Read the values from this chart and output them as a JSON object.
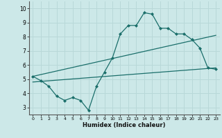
{
  "title": "",
  "xlabel": "Humidex (Indice chaleur)",
  "ylabel": "",
  "bg_color": "#cce8e8",
  "line_color": "#1a6e6a",
  "grid_color": "#b8d8d8",
  "xlim": [
    -0.5,
    23.5
  ],
  "ylim": [
    2.5,
    10.5
  ],
  "xticks": [
    0,
    1,
    2,
    3,
    4,
    5,
    6,
    7,
    8,
    9,
    10,
    11,
    12,
    13,
    14,
    15,
    16,
    17,
    18,
    19,
    20,
    21,
    22,
    23
  ],
  "yticks": [
    3,
    4,
    5,
    6,
    7,
    8,
    9,
    10
  ],
  "line1_x": [
    0,
    1,
    2,
    3,
    4,
    5,
    6,
    7,
    8,
    9,
    10,
    11,
    12,
    13,
    14,
    15,
    16,
    17,
    18,
    19,
    20,
    21,
    22,
    23
  ],
  "line1_y": [
    5.2,
    4.9,
    4.5,
    3.8,
    3.5,
    3.7,
    3.5,
    2.8,
    4.5,
    5.5,
    6.5,
    8.2,
    8.8,
    8.8,
    9.7,
    9.6,
    8.6,
    8.6,
    8.2,
    8.2,
    7.8,
    7.2,
    5.8,
    5.7
  ],
  "line2_x": [
    0,
    23
  ],
  "line2_y": [
    5.2,
    8.1
  ],
  "line3_x": [
    0,
    23
  ],
  "line3_y": [
    4.8,
    5.8
  ]
}
